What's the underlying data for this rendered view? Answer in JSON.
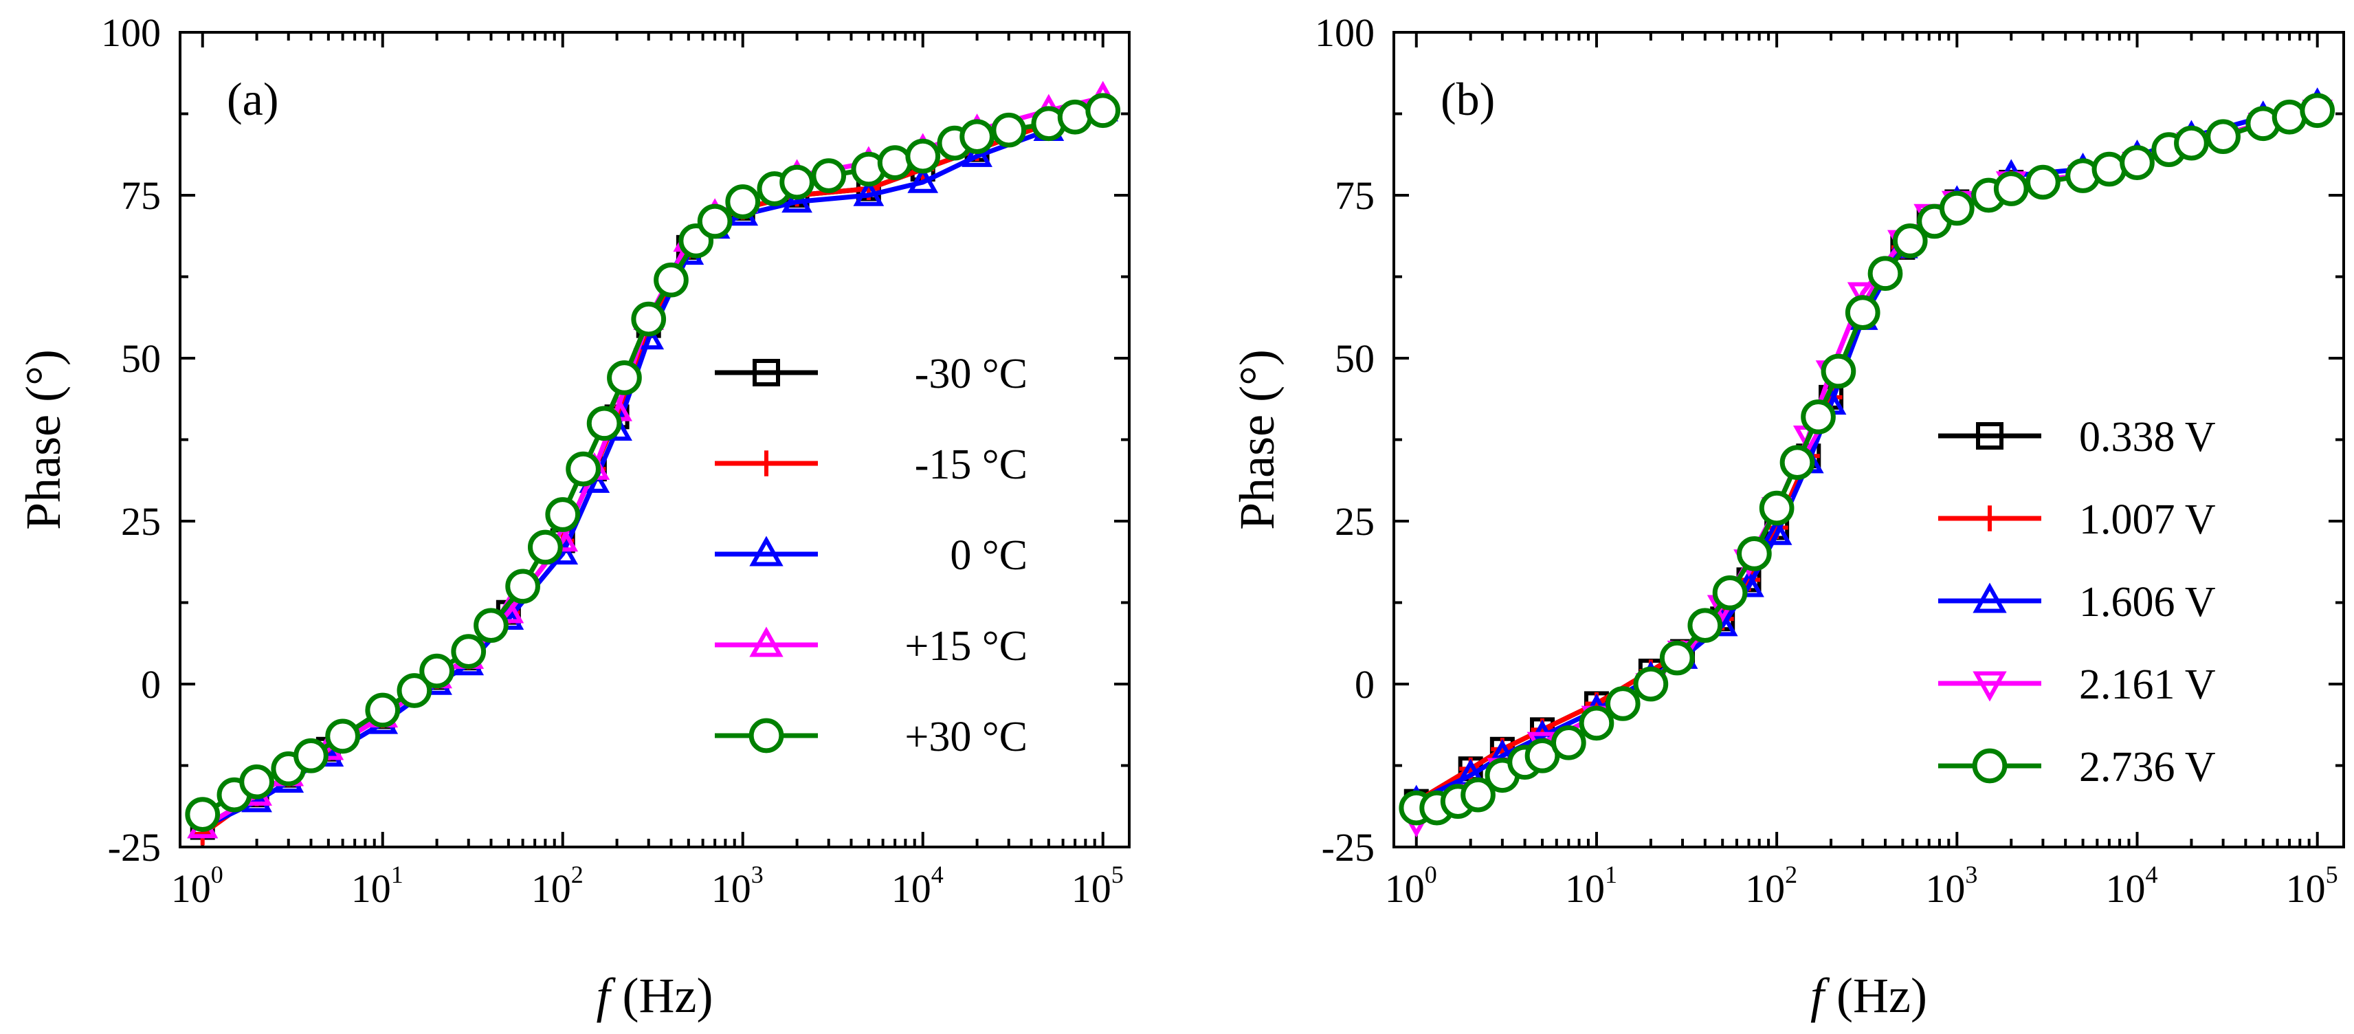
{
  "chart_data": [
    {
      "type": "line",
      "panel_label": "(a)",
      "xlabel_italic": "f",
      "xlabel_rest": "(Hz)",
      "ylabel": "Phase (°)",
      "xscale": "log",
      "xlim": [
        0.75,
        140000
      ],
      "ylim": [
        -25,
        100
      ],
      "y_ticks": [
        -25,
        0,
        25,
        50,
        75,
        100
      ],
      "x_tick_base": "10",
      "x_tick_exponents": [
        "0",
        "1",
        "2",
        "3",
        "4",
        "5"
      ],
      "legend_position": "center-right",
      "series": [
        {
          "name": "-30 °C",
          "color": "#000000",
          "marker": "square",
          "x": [
            1,
            2,
            3,
            5,
            10,
            20,
            30,
            50,
            100,
            150,
            200,
            300,
            500,
            700,
            1000,
            2000,
            5000,
            10000,
            20000,
            50000,
            100000
          ],
          "y": [
            -22,
            -17,
            -14,
            -10,
            -5,
            1,
            4,
            11,
            22,
            33,
            41,
            55,
            67,
            71,
            73,
            75,
            76,
            79,
            82,
            86,
            88
          ]
        },
        {
          "name": "-15 °C",
          "color": "#ff0000",
          "marker": "plus",
          "x": [
            1,
            2,
            3,
            5,
            10,
            20,
            30,
            50,
            100,
            150,
            200,
            300,
            500,
            700,
            1000,
            2000,
            5000,
            10000,
            20000,
            50000,
            100000
          ],
          "y": [
            -23,
            -17,
            -14,
            -10,
            -5,
            1,
            4,
            11,
            22,
            33,
            41,
            55,
            67,
            71,
            73,
            75,
            76,
            79,
            82,
            86,
            88
          ]
        },
        {
          "name": "0 °C",
          "color": "#0000ff",
          "marker": "triangle-up",
          "x": [
            1,
            2,
            3,
            5,
            10,
            20,
            30,
            50,
            100,
            150,
            200,
            300,
            500,
            700,
            1000,
            2000,
            5000,
            10000,
            20000,
            50000,
            100000
          ],
          "y": [
            -22,
            -18,
            -15,
            -11,
            -6,
            0,
            3,
            10,
            20,
            31,
            39,
            53,
            66,
            70,
            72,
            74,
            75,
            77,
            81,
            85,
            88
          ]
        },
        {
          "name": "+15 °C",
          "color": "#ff00ff",
          "marker": "triangle-up",
          "x": [
            1,
            2,
            3,
            5,
            10,
            20,
            30,
            50,
            100,
            150,
            200,
            300,
            500,
            700,
            1000,
            2000,
            5000,
            10000,
            20000,
            50000,
            100000
          ],
          "y": [
            -22,
            -17,
            -14,
            -10,
            -5,
            1,
            4,
            11,
            22,
            33,
            42,
            56,
            68,
            72,
            74,
            78,
            80,
            82,
            85,
            88,
            90
          ]
        },
        {
          "name": "+30 °C",
          "color": "#008000",
          "marker": "circle",
          "x": [
            1,
            1.5,
            2,
            3,
            4,
            6,
            10,
            15,
            20,
            30,
            40,
            60,
            80,
            100,
            130,
            170,
            220,
            300,
            400,
            550,
            700,
            1000,
            1500,
            2000,
            3000,
            5000,
            7000,
            10000,
            15000,
            20000,
            30000,
            50000,
            70000,
            100000
          ],
          "y": [
            -20,
            -17,
            -15,
            -13,
            -11,
            -8,
            -4,
            -1,
            2,
            5,
            9,
            15,
            21,
            26,
            33,
            40,
            47,
            56,
            62,
            68,
            71,
            74,
            76,
            77,
            78,
            79,
            80,
            81,
            83,
            84,
            85,
            86,
            87,
            88
          ]
        }
      ]
    },
    {
      "type": "line",
      "panel_label": "(b)",
      "xlabel_italic": "f",
      "xlabel_rest": "(Hz)",
      "ylabel": "Phase (°)",
      "xscale": "log",
      "xlim": [
        0.75,
        140000
      ],
      "ylim": [
        -25,
        100
      ],
      "y_ticks": [
        -25,
        0,
        25,
        50,
        75,
        100
      ],
      "x_tick_base": "10",
      "x_tick_exponents": [
        "0",
        "1",
        "2",
        "3",
        "4",
        "5"
      ],
      "legend_position": "center-right",
      "series": [
        {
          "name": "0.338 V",
          "color": "#000000",
          "marker": "square",
          "x": [
            1,
            2,
            3,
            5,
            10,
            20,
            30,
            50,
            70,
            100,
            150,
            200,
            300,
            500,
            700,
            1000,
            2000,
            5000,
            10000,
            20000,
            50000,
            100000
          ],
          "y": [
            -18,
            -13,
            -10,
            -7,
            -3,
            2,
            5,
            10,
            16,
            24,
            35,
            44,
            57,
            67,
            71,
            74,
            77,
            78,
            80,
            83,
            86,
            88
          ]
        },
        {
          "name": "1.007 V",
          "color": "#ff0000",
          "marker": "plus",
          "x": [
            1,
            2,
            3,
            5,
            10,
            20,
            30,
            50,
            70,
            100,
            150,
            200,
            300,
            500,
            700,
            1000,
            2000,
            5000,
            10000,
            20000,
            50000,
            100000
          ],
          "y": [
            -18,
            -13,
            -10,
            -7,
            -3,
            2,
            5,
            10,
            16,
            24,
            35,
            44,
            57,
            67,
            71,
            74,
            77,
            78,
            80,
            83,
            86,
            88
          ]
        },
        {
          "name": "1.606 V",
          "color": "#0000ff",
          "marker": "triangle-up",
          "x": [
            1,
            2,
            3,
            5,
            10,
            20,
            30,
            50,
            70,
            100,
            150,
            200,
            300,
            500,
            700,
            1000,
            2000,
            5000,
            10000,
            20000,
            50000,
            100000
          ],
          "y": [
            -18,
            -14,
            -11,
            -8,
            -4,
            1,
            4,
            9,
            15,
            23,
            34,
            43,
            56,
            67,
            71,
            74,
            78,
            79,
            81,
            84,
            87,
            89
          ]
        },
        {
          "name": "2.161 V",
          "color": "#ff00ff",
          "marker": "triangle-down",
          "x": [
            1,
            2,
            3,
            5,
            10,
            20,
            30,
            50,
            70,
            100,
            150,
            200,
            300,
            500,
            700,
            1000,
            2000,
            5000,
            10000,
            20000,
            50000,
            100000
          ],
          "y": [
            -21,
            -17,
            -13,
            -9,
            -5,
            0,
            5,
            12,
            19,
            27,
            38,
            48,
            60,
            68,
            72,
            74,
            77,
            78,
            80,
            83,
            86,
            88
          ]
        },
        {
          "name": "2.736 V",
          "color": "#008000",
          "marker": "circle",
          "x": [
            1,
            1.3,
            1.7,
            2.2,
            3,
            4,
            5,
            7,
            10,
            14,
            20,
            28,
            40,
            55,
            75,
            100,
            130,
            170,
            220,
            300,
            400,
            550,
            750,
            1000,
            1500,
            2000,
            3000,
            5000,
            7000,
            10000,
            15000,
            20000,
            30000,
            50000,
            70000,
            100000
          ],
          "y": [
            -19,
            -19,
            -18,
            -17,
            -14,
            -12,
            -11,
            -9,
            -6,
            -3,
            0,
            4,
            9,
            14,
            20,
            27,
            34,
            41,
            48,
            57,
            63,
            68,
            71,
            73,
            75,
            76,
            77,
            78,
            79,
            80,
            82,
            83,
            84,
            86,
            87,
            88
          ]
        }
      ]
    }
  ]
}
